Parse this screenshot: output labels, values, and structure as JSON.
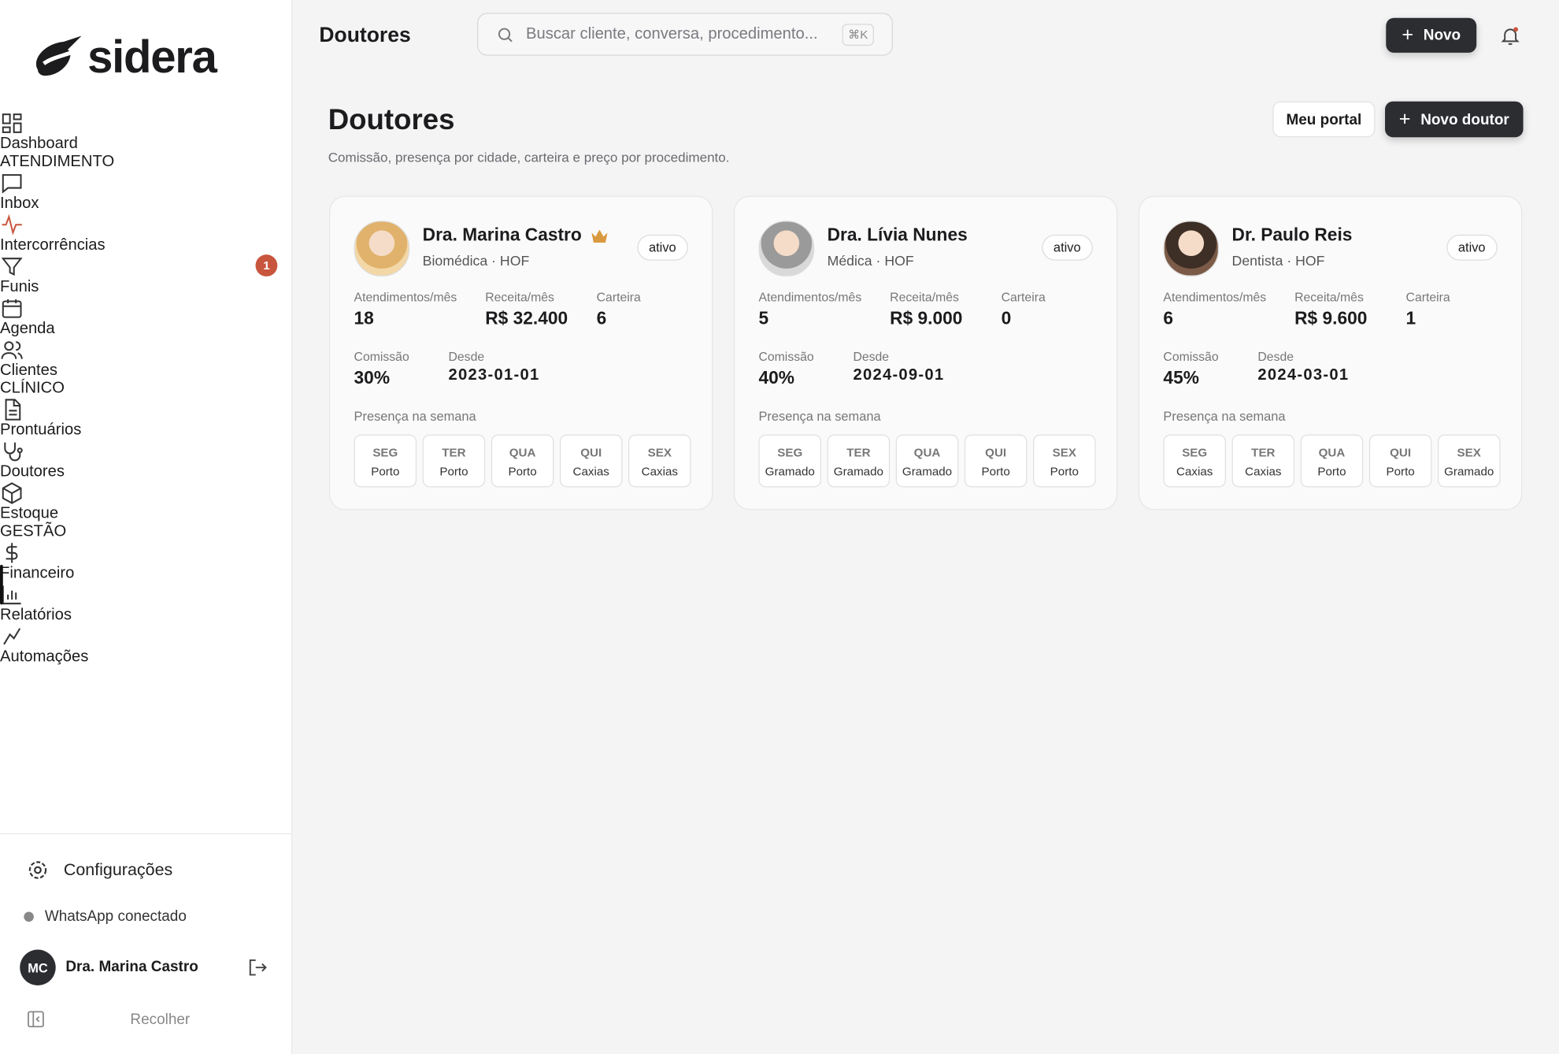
{
  "brand": "sidera",
  "nav": [
    {
      "items": [
        {
          "label": "Dashboard"
        }
      ]
    },
    {
      "title": "ATENDIMENTO",
      "items": [
        {
          "label": "Inbox"
        },
        {
          "label": "Intercorrências",
          "badge": "1"
        },
        {
          "label": "Funis"
        },
        {
          "label": "Agenda"
        },
        {
          "label": "Clientes"
        }
      ]
    },
    {
      "title": "CLÍNICO",
      "items": [
        {
          "label": "Prontuários"
        },
        {
          "label": "Doutores",
          "active": true
        },
        {
          "label": "Estoque"
        }
      ]
    },
    {
      "title": "GESTÃO",
      "items": [
        {
          "label": "Financeiro"
        },
        {
          "label": "Relatórios"
        },
        {
          "label": "Automações"
        }
      ]
    }
  ],
  "footer": {
    "settings": "Configurações",
    "status": "WhatsApp conectado",
    "user": {
      "initials": "MC",
      "name": "Dra. Marina Castro"
    },
    "collapse": "Recolher"
  },
  "topbar": {
    "title": "Doutores",
    "search": "Buscar cliente, conversa, procedimento...",
    "shortcut": "⌘K",
    "new": "Novo"
  },
  "page": {
    "title": "Doutores",
    "subtitle": "Comissão, presença por cidade, carteira e preço por procedimento.",
    "portal": "Meu portal",
    "add": "Novo doutor",
    "presence_title": "Presença na semana"
  },
  "doctors": [
    {
      "name": "Dra. Marina Castro",
      "role": "Biomédica · HOF",
      "status": "ativo",
      "crown": true,
      "stats": [
        {
          "label": "Atendimentos/mês",
          "value": "18"
        },
        {
          "label": "Receita/mês",
          "value": "R$ 32.400"
        },
        {
          "label": "Carteira",
          "value": "6"
        },
        {
          "label": "Comissão",
          "value": "30%"
        },
        {
          "label": "Desde",
          "value": "2023-01-01"
        }
      ],
      "presence": [
        {
          "day": "SEG",
          "city": "Porto"
        },
        {
          "day": "TER",
          "city": "Porto"
        },
        {
          "day": "QUA",
          "city": "Porto"
        },
        {
          "day": "QUI",
          "city": "Caxias"
        },
        {
          "day": "SEX",
          "city": "Caxias"
        }
      ]
    },
    {
      "name": "Dra. Lívia Nunes",
      "role": "Médica · HOF",
      "status": "ativo",
      "stats": [
        {
          "label": "Atendimentos/mês",
          "value": "5"
        },
        {
          "label": "Receita/mês",
          "value": "R$ 9.000"
        },
        {
          "label": "Carteira",
          "value": "0"
        },
        {
          "label": "Comissão",
          "value": "40%"
        },
        {
          "label": "Desde",
          "value": "2024-09-01"
        }
      ],
      "presence": [
        {
          "day": "SEG",
          "city": "Gramado"
        },
        {
          "day": "TER",
          "city": "Gramado"
        },
        {
          "day": "QUA",
          "city": "Gramado"
        },
        {
          "day": "QUI",
          "city": "Porto"
        },
        {
          "day": "SEX",
          "city": "Porto"
        }
      ]
    },
    {
      "name": "Dr. Paulo Reis",
      "role": "Dentista · HOF",
      "status": "ativo",
      "stats": [
        {
          "label": "Atendimentos/mês",
          "value": "6"
        },
        {
          "label": "Receita/mês",
          "value": "R$ 9.600"
        },
        {
          "label": "Carteira",
          "value": "1"
        },
        {
          "label": "Comissão",
          "value": "45%"
        },
        {
          "label": "Desde",
          "value": "2024-03-01"
        }
      ],
      "presence": [
        {
          "day": "SEG",
          "city": "Caxias"
        },
        {
          "day": "TER",
          "city": "Caxias"
        },
        {
          "day": "QUA",
          "city": "Porto"
        },
        {
          "day": "QUI",
          "city": "Porto"
        },
        {
          "day": "SEX",
          "city": "Gramado"
        }
      ]
    }
  ]
}
